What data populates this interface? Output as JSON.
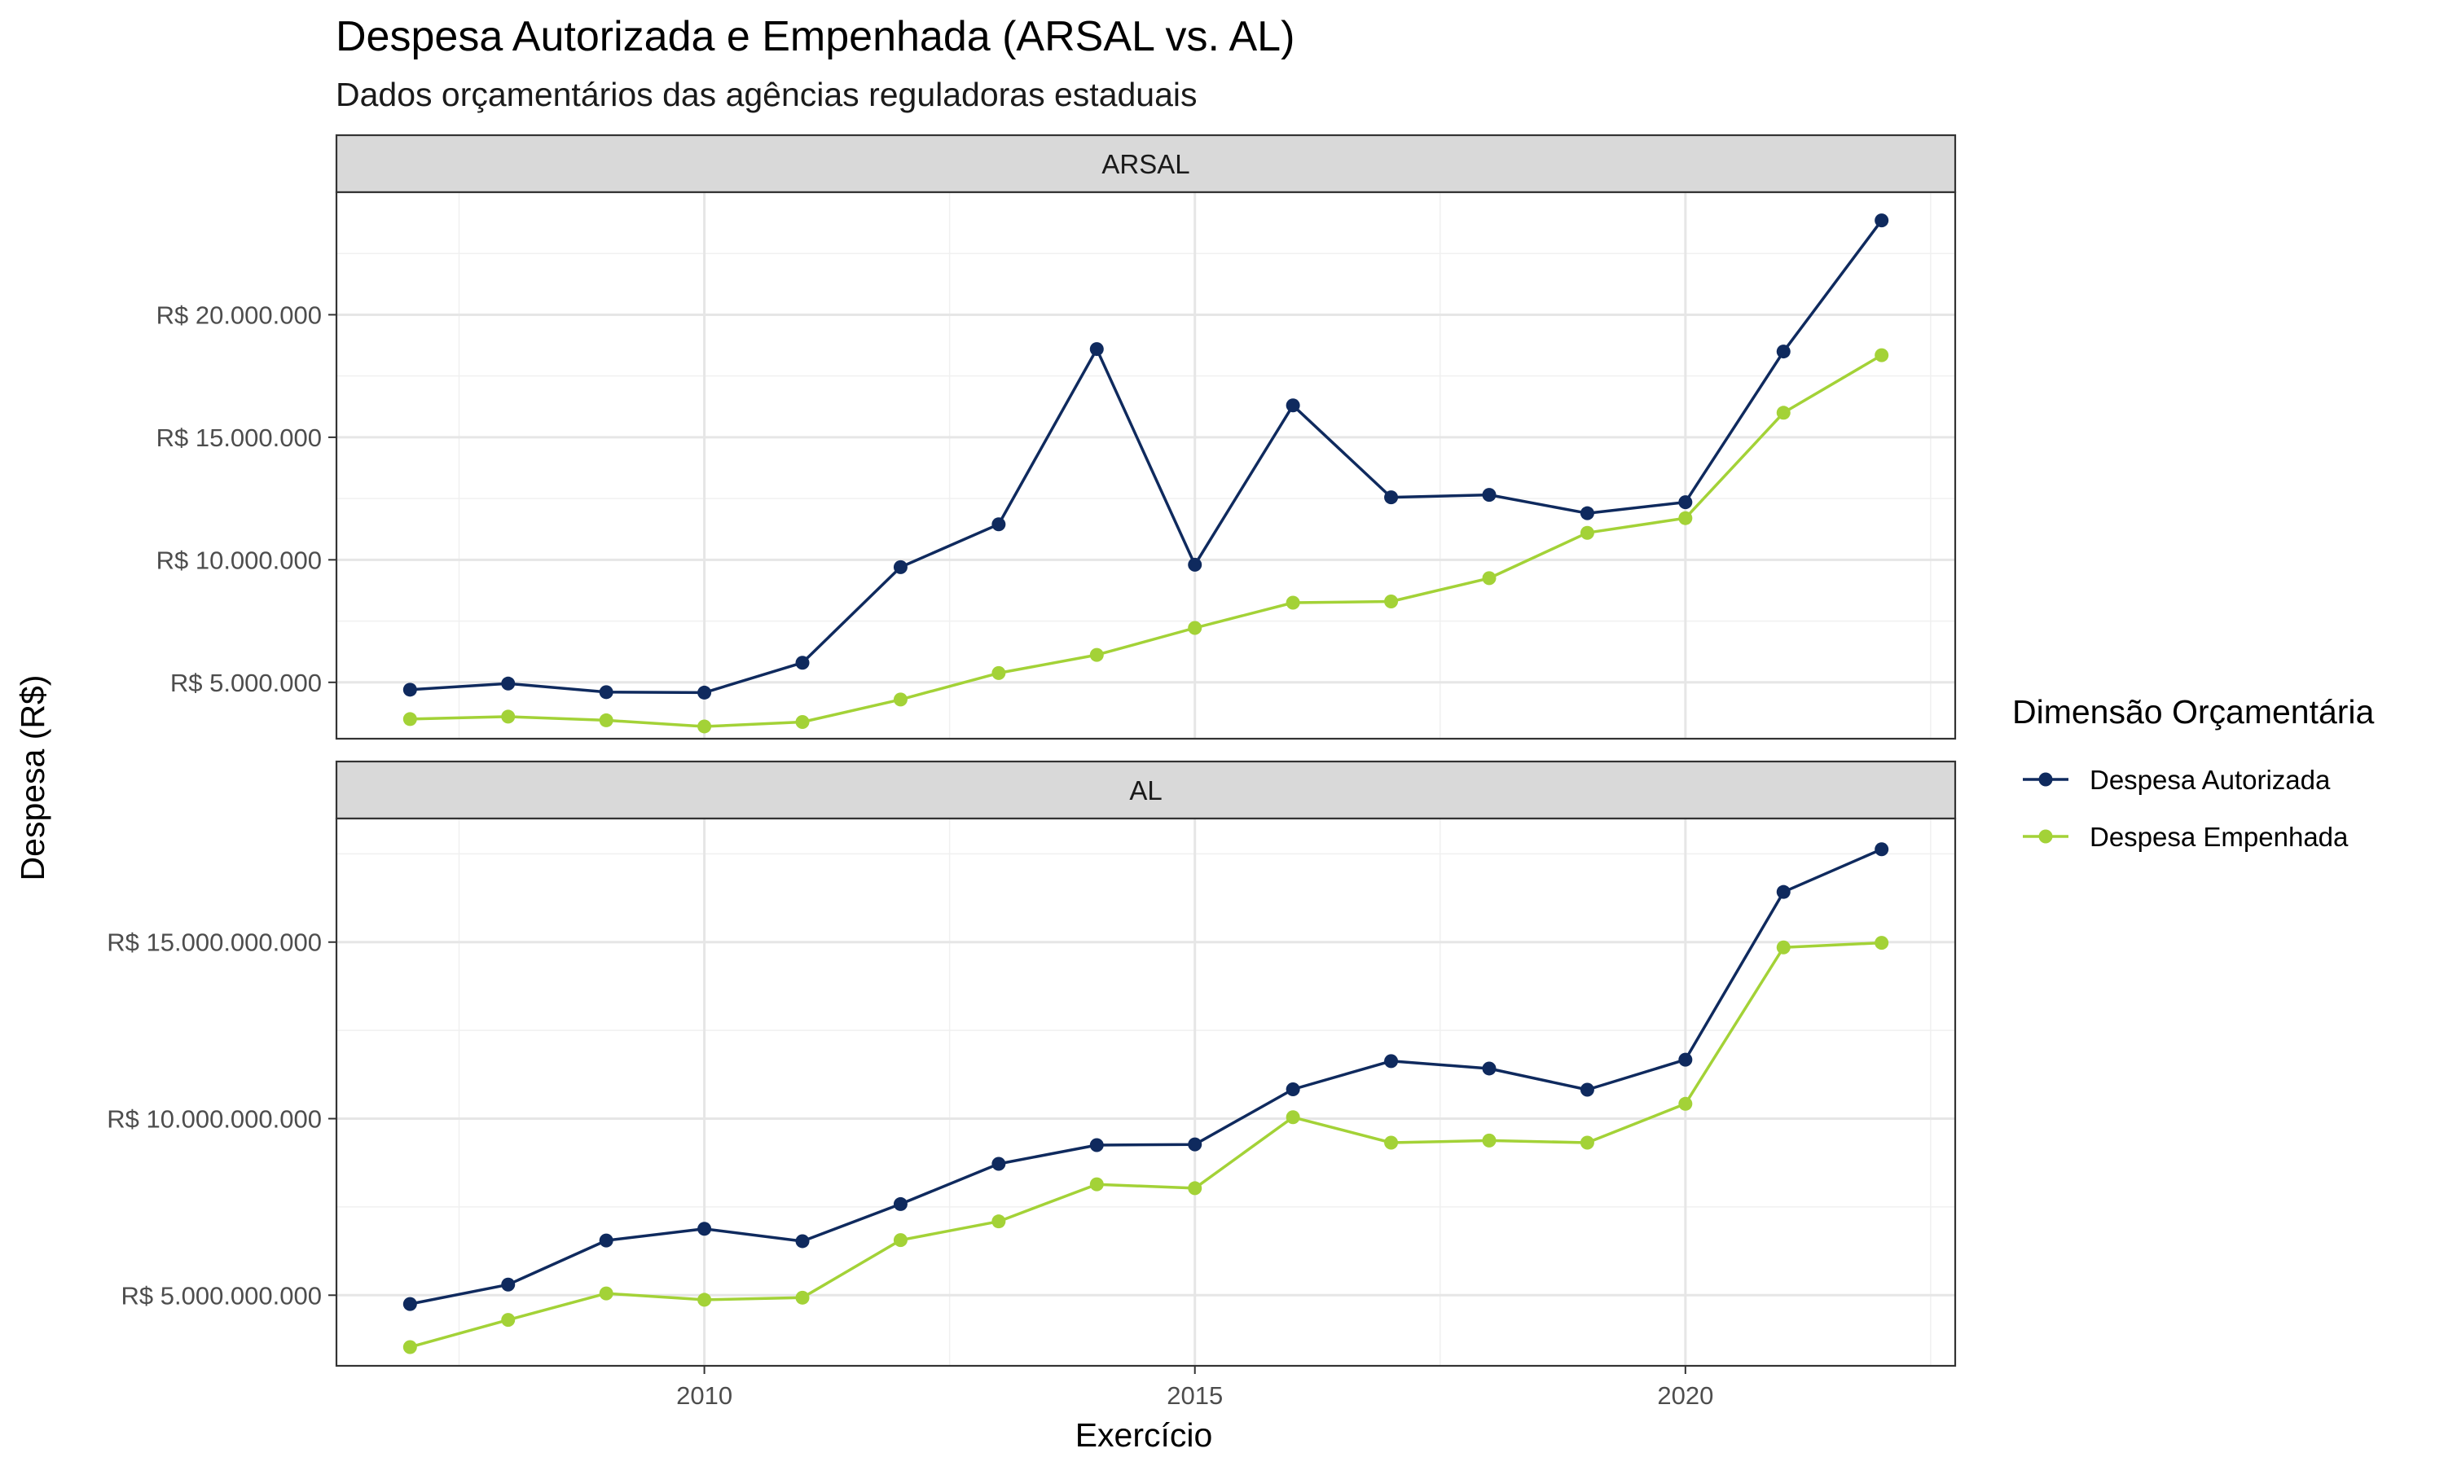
{
  "chart_data": {
    "type": "line",
    "title": "Despesa Autorizada e Empenhada (ARSAL vs. AL)",
    "subtitle": "Dados orçamentários das agências reguladoras estaduais",
    "xlabel": "Exercício",
    "ylabel": "Despesa (R$)",
    "x": [
      2007,
      2008,
      2009,
      2010,
      2011,
      2012,
      2013,
      2014,
      2015,
      2016,
      2017,
      2018,
      2019,
      2020,
      2021,
      2022
    ],
    "x_ticks": [
      2010,
      2015,
      2020
    ],
    "x_tick_labels": [
      "2010",
      "2015",
      "2020"
    ],
    "xlim": [
      2006.25,
      2022.75
    ],
    "grid": true,
    "legend": {
      "title": "Dimensão Orçamentária",
      "position": "right",
      "items": [
        "Despesa Autorizada",
        "Despesa Empenhada"
      ]
    },
    "colors": {
      "Despesa Autorizada": "#0f2a5e",
      "Despesa Empenhada": "#a3d237"
    },
    "panels": [
      {
        "strip": "ARSAL",
        "ylim": [
          2700000,
          25000000
        ],
        "y_ticks": [
          5000000,
          10000000,
          15000000,
          20000000
        ],
        "y_tick_labels": [
          "R$ 5.000.000",
          "R$ 10.000.000",
          "R$ 15.000.000",
          "R$ 20.000.000"
        ],
        "series": [
          {
            "name": "Despesa Autorizada",
            "values": [
              4700000,
              4950000,
              4600000,
              4580000,
              5800000,
              9700000,
              11450000,
              18600000,
              9800000,
              16300000,
              12550000,
              12650000,
              11900000,
              12350000,
              18500000,
              23850000
            ]
          },
          {
            "name": "Despesa Empenhada",
            "values": [
              3500000,
              3600000,
              3450000,
              3200000,
              3380000,
              4300000,
              5380000,
              6120000,
              7220000,
              8250000,
              8300000,
              9250000,
              11100000,
              11700000,
              16000000,
              18350000
            ]
          }
        ]
      },
      {
        "strip": "AL",
        "ylim": [
          3000000000,
          18500000000
        ],
        "y_ticks": [
          5000000000,
          10000000000,
          15000000000
        ],
        "y_tick_labels": [
          "R$ 5.000.000.000",
          "R$ 10.000.000.000",
          "R$ 15.000.000.000"
        ],
        "series": [
          {
            "name": "Despesa Autorizada",
            "values": [
              4750000000,
              5300000000,
              6550000000,
              6880000000,
              6530000000,
              7580000000,
              8720000000,
              9250000000,
              9270000000,
              10830000000,
              11630000000,
              11420000000,
              10820000000,
              11670000000,
              16420000000,
              17630000000
            ]
          },
          {
            "name": "Despesa Empenhada",
            "values": [
              3530000000,
              4300000000,
              5050000000,
              4870000000,
              4930000000,
              6560000000,
              7090000000,
              8140000000,
              8030000000,
              10040000000,
              9320000000,
              9380000000,
              9320000000,
              10420000000,
              14850000000,
              14980000000
            ]
          }
        ]
      }
    ]
  }
}
